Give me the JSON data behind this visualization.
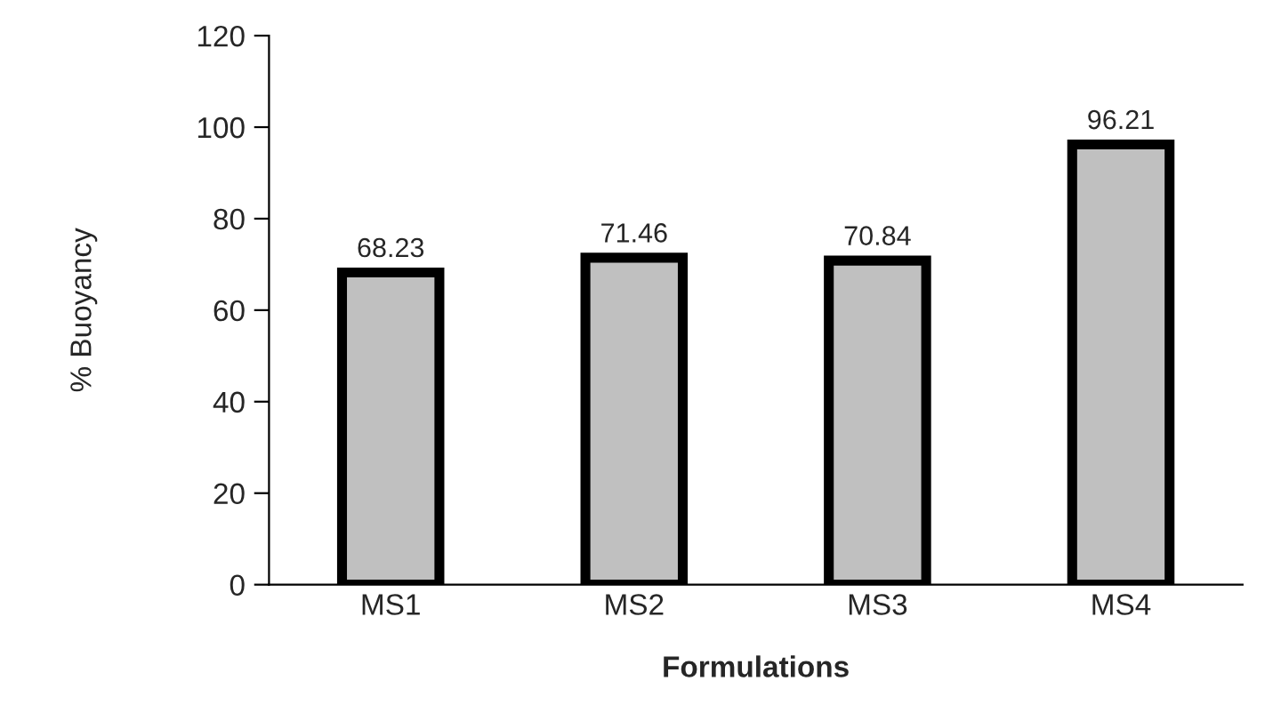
{
  "chart_data": {
    "type": "bar",
    "xlabel": "Formulations",
    "ylabel": "% Buoyancy",
    "categories": [
      "MS1",
      "MS2",
      "MS3",
      "MS4"
    ],
    "values": [
      68.23,
      71.46,
      70.84,
      96.21
    ],
    "color": "#c0c0c0",
    "ylim": [
      0,
      120
    ],
    "yticks": [
      0,
      20,
      40,
      60,
      80,
      100,
      120
    ],
    "data_labels": true,
    "grid": false,
    "legend": false
  }
}
